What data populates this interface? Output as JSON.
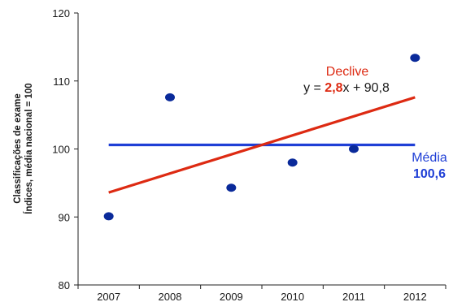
{
  "chart_data": {
    "type": "scatter",
    "title": "",
    "ylabel": [
      "Classificações de exame",
      "Índices, média nacional = 100"
    ],
    "xlabel": "",
    "categories": [
      "2007",
      "2008",
      "2009",
      "2010",
      "2011",
      "2012"
    ],
    "y_ticks": [
      "80",
      "90",
      "100",
      "110",
      "120"
    ],
    "ylim": [
      80,
      120
    ],
    "grid": false,
    "series": [
      {
        "x": [
          "2007",
          "2008",
          "2009",
          "2010",
          "2011",
          "2012"
        ],
        "values": [
          90.1,
          107.6,
          94.3,
          98.0,
          100.0,
          113.4
        ],
        "color": "#0a2a9a"
      }
    ],
    "trend_line": {
      "slope": 2.8,
      "intercept": 90.8,
      "start": 93.6,
      "end": 107.6,
      "color": "#dd2a12"
    },
    "mean_line": {
      "value": 100.6,
      "color": "#1f3fd6"
    },
    "annotations": {
      "declive_label": "Declive",
      "equation_prefix": "y = ",
      "equation_slope": "2,8",
      "equation_suffix": "x + 90,8",
      "mean_label": "Média",
      "mean_value": "100,6"
    }
  }
}
